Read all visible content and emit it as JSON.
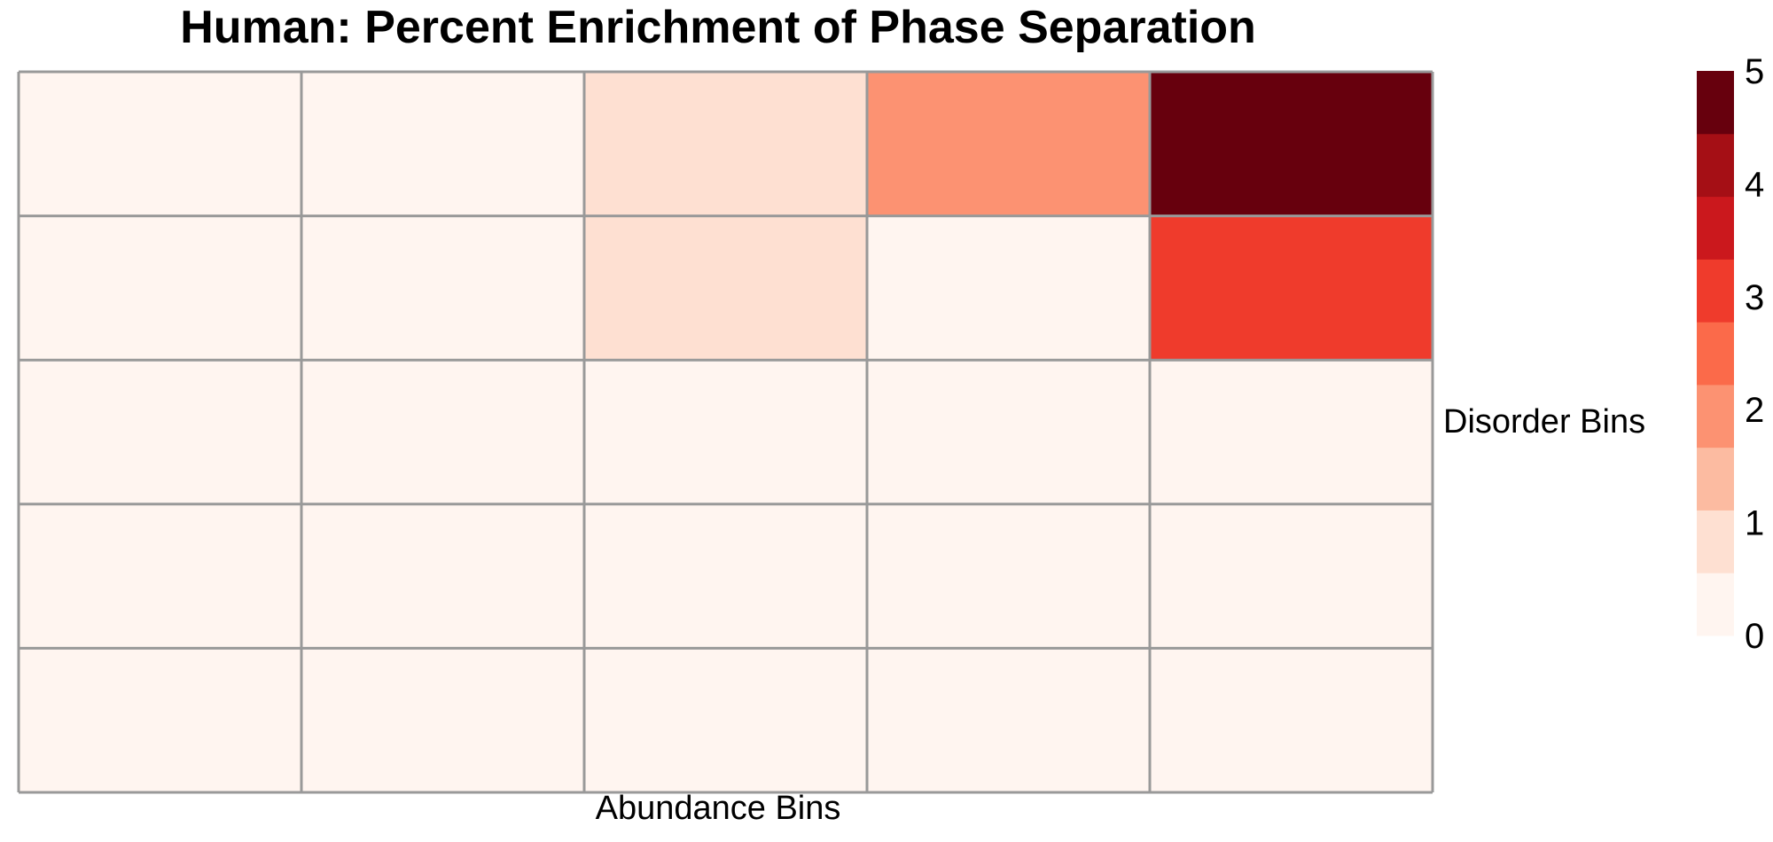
{
  "chart_data": {
    "type": "heatmap",
    "title": "Human: Percent Enrichment of Phase Separation",
    "xlabel": "Abundance Bins",
    "ylabel": "Disorder Bins",
    "n_rows": 5,
    "n_cols": 5,
    "values": [
      [
        0.2,
        0.2,
        0.8,
        2.1,
        5.0
      ],
      [
        0.2,
        0.2,
        0.8,
        0.2,
        3.0
      ],
      [
        0.2,
        0.2,
        0.2,
        0.2,
        0.2
      ],
      [
        0.2,
        0.2,
        0.2,
        0.2,
        0.2
      ],
      [
        0.2,
        0.2,
        0.2,
        0.2,
        0.2
      ]
    ],
    "color_range": [
      0,
      5
    ],
    "color_steps": [
      "#fff5f0",
      "#fee0d2",
      "#fcbba1",
      "#fc9272",
      "#fb6a4a",
      "#ef3b2c",
      "#cb181d",
      "#a50f15",
      "#67000d"
    ],
    "legend": {
      "ticks": [
        "0",
        "1",
        "2",
        "3",
        "4",
        "5"
      ],
      "position": "right"
    },
    "grid_color": "#999999"
  }
}
